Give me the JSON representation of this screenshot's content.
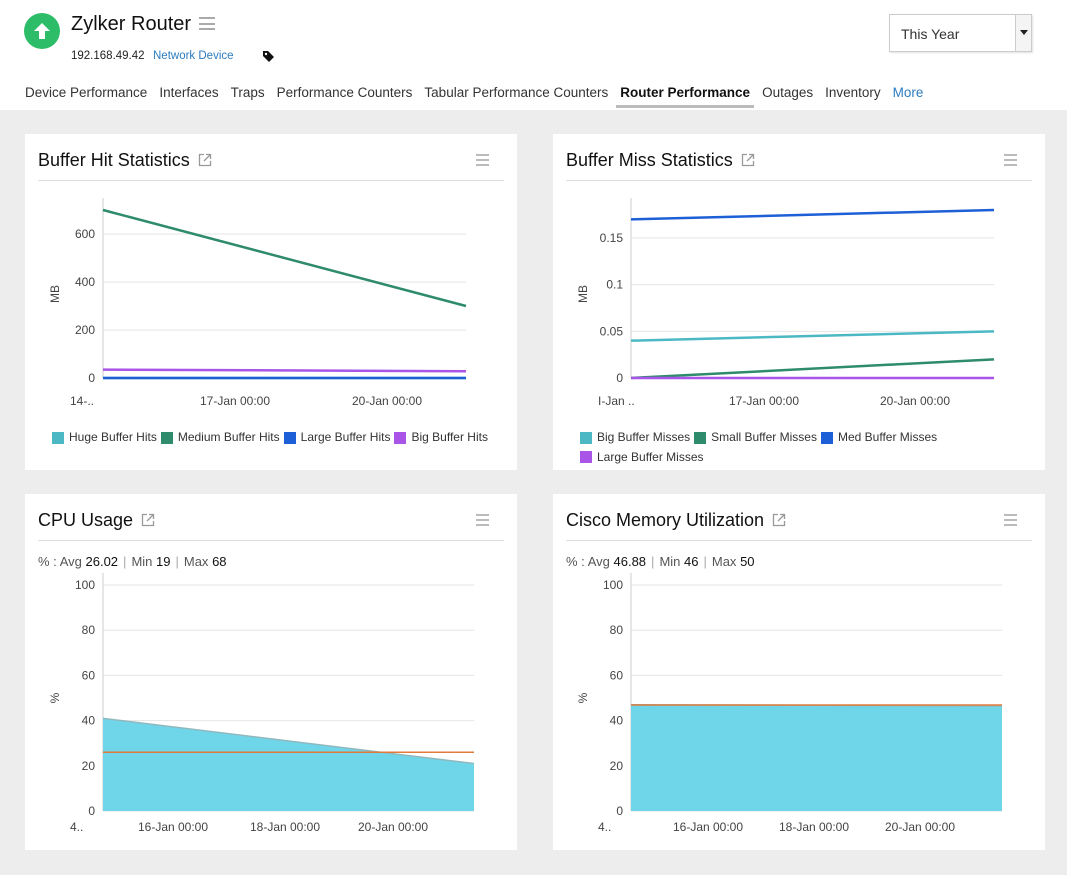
{
  "device": {
    "name": "Zylker Router",
    "ip": "192.168.49.42",
    "type": "Network Device",
    "status_color": "#2dbc68"
  },
  "period": {
    "selected": "This Year"
  },
  "tabs": [
    {
      "label": "Device Performance"
    },
    {
      "label": "Interfaces"
    },
    {
      "label": "Traps"
    },
    {
      "label": "Performance Counters"
    },
    {
      "label": "Tabular Performance Counters"
    },
    {
      "label": "Router Performance",
      "active": true
    },
    {
      "label": "Outages"
    },
    {
      "label": "Inventory"
    },
    {
      "label": "More"
    }
  ],
  "cards": {
    "buffer_hit": {
      "title": "Buffer Hit Statistics"
    },
    "buffer_miss": {
      "title": "Buffer Miss Statistics"
    },
    "cpu": {
      "title": "CPU Usage",
      "stats": {
        "unit": "% :",
        "avg_label": "Avg",
        "avg": "26.02",
        "min_label": "Min",
        "min": "19",
        "max_label": "Max",
        "max": "68"
      }
    },
    "memory": {
      "title": "Cisco Memory Utilization",
      "stats": {
        "unit": "% :",
        "avg_label": "Avg",
        "avg": "46.88",
        "min_label": "Min",
        "min": "46",
        "max_label": "Max",
        "max": "50"
      }
    }
  },
  "chart_data": [
    {
      "id": "buffer_hit",
      "type": "line",
      "ylabel": "MB",
      "ylim": [
        0,
        700
      ],
      "yticks": [
        0,
        200,
        400,
        600
      ],
      "xticks": [
        "14-..",
        "17-Jan 00:00",
        "20-Jan 00:00"
      ],
      "x": [
        0,
        1
      ],
      "series": [
        {
          "name": "Huge Buffer Hits",
          "color": "#4cb8c4",
          "values": [
            0,
            0
          ]
        },
        {
          "name": "Medium Buffer Hits",
          "color": "#2e8b6b",
          "values": [
            700,
            300
          ]
        },
        {
          "name": "Large Buffer Hits",
          "color": "#1c5fd6",
          "values": [
            0,
            0
          ]
        },
        {
          "name": "Big Buffer Hits",
          "color": "#a855e8",
          "values": [
            35,
            28
          ]
        }
      ],
      "legend": "bottom"
    },
    {
      "id": "buffer_miss",
      "type": "line",
      "ylabel": "MB",
      "ylim": [
        0,
        0.18
      ],
      "yticks": [
        0,
        0.05,
        0.1,
        0.15
      ],
      "xticks": [
        "I-Jan ..",
        "17-Jan 00:00",
        "20-Jan 00:00"
      ],
      "x": [
        0,
        1
      ],
      "series": [
        {
          "name": "Big Buffer Misses",
          "color": "#4cb8c4",
          "values": [
            0.04,
            0.05
          ]
        },
        {
          "name": "Small Buffer Misses",
          "color": "#2e8b6b",
          "values": [
            0,
            0.02
          ]
        },
        {
          "name": "Med Buffer Misses",
          "color": "#1c5fd6",
          "values": [
            0.17,
            0.18
          ]
        },
        {
          "name": "Large Buffer Misses",
          "color": "#a855e8",
          "values": [
            0,
            0
          ]
        }
      ],
      "legend": "bottom"
    },
    {
      "id": "cpu",
      "type": "area",
      "ylabel": "%",
      "ylim": [
        0,
        100
      ],
      "yticks": [
        0,
        20,
        40,
        60,
        80,
        100
      ],
      "xticks": [
        "4..",
        "16-Jan 00:00",
        "18-Jan 00:00",
        "20-Jan 00:00"
      ],
      "x": [
        0,
        1
      ],
      "series": [
        {
          "color": "#6fd6ea",
          "values": [
            41,
            21
          ]
        }
      ],
      "reference_line": {
        "value": 26,
        "color": "#e07b3a"
      }
    },
    {
      "id": "memory",
      "type": "area",
      "ylabel": "%",
      "ylim": [
        0,
        100
      ],
      "yticks": [
        0,
        20,
        40,
        60,
        80,
        100
      ],
      "xticks": [
        "4..",
        "16-Jan 00:00",
        "18-Jan 00:00",
        "20-Jan 00:00"
      ],
      "x": [
        0,
        1
      ],
      "series": [
        {
          "color": "#6fd6ea",
          "values": [
            47,
            46.5
          ]
        }
      ],
      "reference_line": {
        "value": 46.9,
        "color": "#e07b3a"
      }
    }
  ]
}
